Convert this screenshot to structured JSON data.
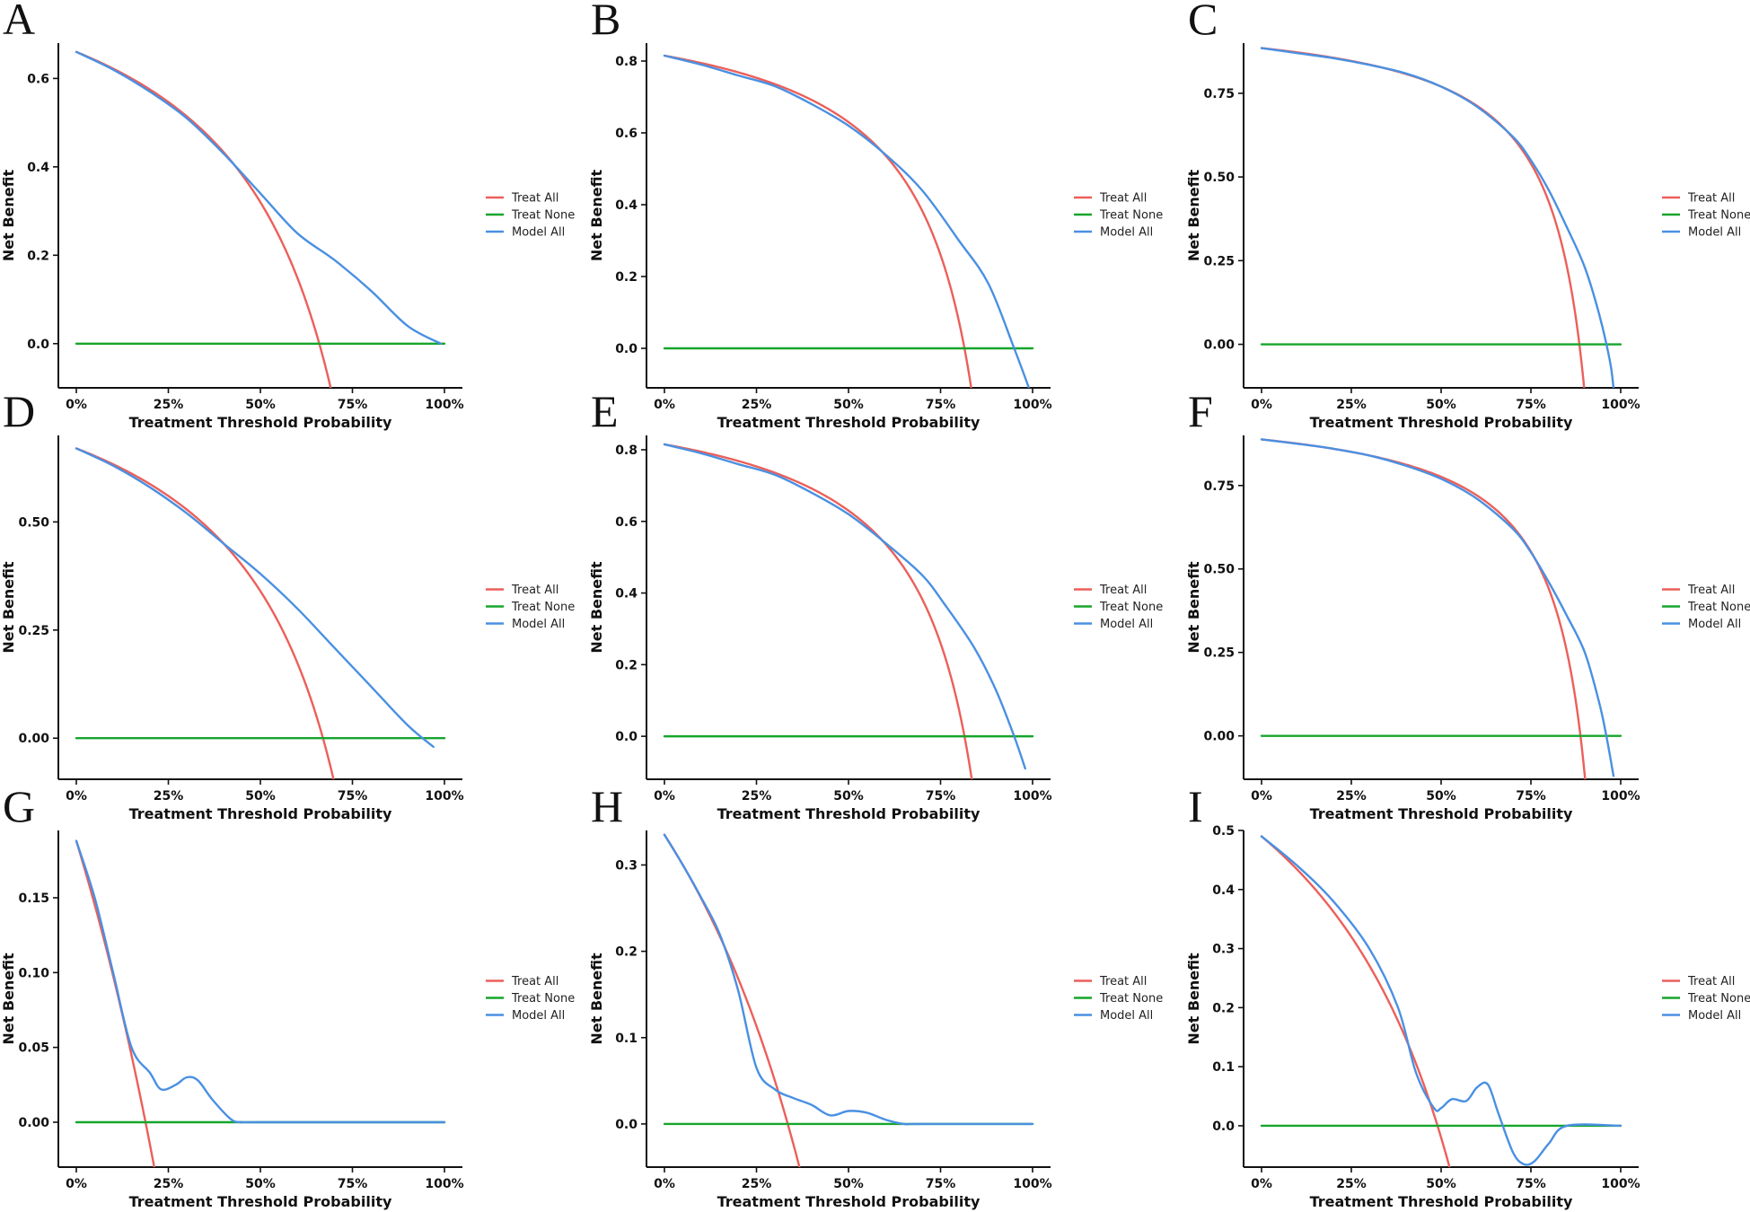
{
  "colors": {
    "treat_all": "#ec5f5a",
    "treat_none": "#17a52c",
    "model_all": "#4a90e2"
  },
  "chart_data": [
    {
      "type": "line",
      "panel": "A",
      "xlabel": "Treatment Threshold Probability",
      "ylabel": "Net Benefit",
      "xlim": [
        0,
        1
      ],
      "ylim": [
        -0.1,
        0.68
      ],
      "xticks": [
        0,
        0.25,
        0.5,
        0.75,
        1.0
      ],
      "xtick_labels": [
        "0%",
        "25%",
        "50%",
        "75%",
        "100%"
      ],
      "yticks": [
        0.0,
        0.2,
        0.4,
        0.6
      ],
      "ytick_labels": [
        "0.0",
        "0.2",
        "0.4",
        "0.6"
      ],
      "legend": [
        "Treat All",
        "Treat None",
        "Model All"
      ],
      "legend_position": "right",
      "prevalence": 0.66,
      "series": [
        {
          "name": "Treat None",
          "x": [
            0,
            1
          ],
          "y": [
            0,
            0
          ]
        },
        {
          "name": "Model All",
          "x": [
            0,
            0.1,
            0.2,
            0.3,
            0.4,
            0.5,
            0.6,
            0.7,
            0.8,
            0.9,
            0.99
          ],
          "y": [
            0.66,
            0.62,
            0.57,
            0.51,
            0.43,
            0.34,
            0.25,
            0.19,
            0.12,
            0.04,
            0.0
          ]
        }
      ]
    },
    {
      "type": "line",
      "panel": "B",
      "xlabel": "Treatment Threshold Probability",
      "ylabel": "Net Benefit",
      "xlim": [
        0,
        1
      ],
      "ylim": [
        -0.11,
        0.85
      ],
      "xticks": [
        0,
        0.25,
        0.5,
        0.75,
        1.0
      ],
      "xtick_labels": [
        "0%",
        "25%",
        "50%",
        "75%",
        "100%"
      ],
      "yticks": [
        0.0,
        0.2,
        0.4,
        0.6,
        0.8
      ],
      "ytick_labels": [
        "0.0",
        "0.2",
        "0.4",
        "0.6",
        "0.8"
      ],
      "legend": [
        "Treat All",
        "Treat None",
        "Model All"
      ],
      "legend_position": "right",
      "prevalence": 0.815,
      "series": [
        {
          "name": "Treat None",
          "x": [
            0,
            1
          ],
          "y": [
            0,
            0
          ]
        },
        {
          "name": "Model All",
          "x": [
            0,
            0.1,
            0.2,
            0.3,
            0.4,
            0.5,
            0.6,
            0.7,
            0.8,
            0.88,
            0.95,
            0.99
          ],
          "y": [
            0.815,
            0.79,
            0.76,
            0.73,
            0.68,
            0.62,
            0.54,
            0.44,
            0.3,
            0.18,
            0.0,
            -0.11
          ]
        }
      ]
    },
    {
      "type": "line",
      "panel": "C",
      "xlabel": "Treatment Threshold Probability",
      "ylabel": "Net Benefit",
      "xlim": [
        0,
        1
      ],
      "ylim": [
        -0.13,
        0.9
      ],
      "xticks": [
        0,
        0.25,
        0.5,
        0.75,
        1.0
      ],
      "xtick_labels": [
        "0%",
        "25%",
        "50%",
        "75%",
        "100%"
      ],
      "yticks": [
        0.0,
        0.25,
        0.5,
        0.75
      ],
      "ytick_labels": [
        "0.00",
        "0.25",
        "0.50",
        "0.75"
      ],
      "legend": [
        "Treat All",
        "Treat None",
        "Model All"
      ],
      "legend_position": "right",
      "prevalence": 0.885,
      "series": [
        {
          "name": "Treat None",
          "x": [
            0,
            1
          ],
          "y": [
            0,
            0
          ]
        },
        {
          "name": "Model All",
          "x": [
            0,
            0.1,
            0.2,
            0.3,
            0.4,
            0.5,
            0.6,
            0.7,
            0.75,
            0.8,
            0.85,
            0.9,
            0.94,
            0.97,
            0.98
          ],
          "y": [
            0.885,
            0.87,
            0.855,
            0.835,
            0.81,
            0.77,
            0.71,
            0.62,
            0.55,
            0.46,
            0.35,
            0.23,
            0.09,
            -0.05,
            -0.13
          ]
        }
      ]
    },
    {
      "type": "line",
      "panel": "D",
      "xlabel": "Treatment Threshold Probability",
      "ylabel": "Net Benefit",
      "xlim": [
        0,
        1
      ],
      "ylim": [
        -0.095,
        0.7
      ],
      "xticks": [
        0,
        0.25,
        0.5,
        0.75,
        1.0
      ],
      "xtick_labels": [
        "0%",
        "25%",
        "50%",
        "75%",
        "100%"
      ],
      "yticks": [
        0.0,
        0.25,
        0.5
      ],
      "ytick_labels": [
        "0.00",
        "0.25",
        "0.50"
      ],
      "legend": [
        "Treat All",
        "Treat None",
        "Model All"
      ],
      "legend_position": "right",
      "prevalence": 0.67,
      "series": [
        {
          "name": "Treat None",
          "x": [
            0,
            1
          ],
          "y": [
            0,
            0
          ]
        },
        {
          "name": "Model All",
          "x": [
            0,
            0.1,
            0.2,
            0.3,
            0.4,
            0.5,
            0.6,
            0.7,
            0.8,
            0.9,
            0.97
          ],
          "y": [
            0.67,
            0.63,
            0.58,
            0.52,
            0.45,
            0.38,
            0.3,
            0.21,
            0.12,
            0.03,
            -0.02
          ]
        }
      ]
    },
    {
      "type": "line",
      "panel": "E",
      "xlabel": "Treatment Threshold Probability",
      "ylabel": "Net Benefit",
      "xlim": [
        0,
        1
      ],
      "ylim": [
        -0.12,
        0.84
      ],
      "xticks": [
        0,
        0.25,
        0.5,
        0.75,
        1.0
      ],
      "xtick_labels": [
        "0%",
        "25%",
        "50%",
        "75%",
        "100%"
      ],
      "yticks": [
        0.0,
        0.2,
        0.4,
        0.6,
        0.8
      ],
      "ytick_labels": [
        "0.0",
        "0.2",
        "0.4",
        "0.6",
        "0.8"
      ],
      "legend": [
        "Treat All",
        "Treat None",
        "Model All"
      ],
      "legend_position": "right",
      "prevalence": 0.815,
      "series": [
        {
          "name": "Treat None",
          "x": [
            0,
            1
          ],
          "y": [
            0,
            0
          ]
        },
        {
          "name": "Model All",
          "x": [
            0,
            0.1,
            0.2,
            0.3,
            0.4,
            0.5,
            0.6,
            0.7,
            0.76,
            0.84,
            0.9,
            0.95,
            0.98
          ],
          "y": [
            0.815,
            0.79,
            0.76,
            0.73,
            0.68,
            0.62,
            0.54,
            0.45,
            0.37,
            0.25,
            0.13,
            0.0,
            -0.09
          ]
        }
      ]
    },
    {
      "type": "line",
      "panel": "F",
      "xlabel": "Treatment Threshold Probability",
      "ylabel": "Net Benefit",
      "xlim": [
        0,
        1
      ],
      "ylim": [
        -0.13,
        0.9
      ],
      "xticks": [
        0,
        0.25,
        0.5,
        0.75,
        1.0
      ],
      "xtick_labels": [
        "0%",
        "25%",
        "50%",
        "75%",
        "100%"
      ],
      "yticks": [
        0.0,
        0.25,
        0.5,
        0.75
      ],
      "ytick_labels": [
        "0.00",
        "0.25",
        "0.50",
        "0.75"
      ],
      "legend": [
        "Treat All",
        "Treat None",
        "Model All"
      ],
      "legend_position": "right",
      "prevalence": 0.888,
      "series": [
        {
          "name": "Treat None",
          "x": [
            0,
            1
          ],
          "y": [
            0,
            0
          ]
        },
        {
          "name": "Model All",
          "x": [
            0,
            0.1,
            0.2,
            0.3,
            0.4,
            0.5,
            0.6,
            0.7,
            0.75,
            0.8,
            0.85,
            0.9,
            0.94,
            0.96,
            0.98
          ],
          "y": [
            0.888,
            0.875,
            0.86,
            0.84,
            0.81,
            0.77,
            0.71,
            0.62,
            0.55,
            0.46,
            0.36,
            0.25,
            0.1,
            0.0,
            -0.12
          ]
        }
      ]
    },
    {
      "type": "line",
      "panel": "G",
      "xlabel": "Treatment Threshold Probability",
      "ylabel": "Net Benefit",
      "xlim": [
        0,
        1
      ],
      "ylim": [
        -0.03,
        0.195
      ],
      "xticks": [
        0,
        0.25,
        0.5,
        0.75,
        1.0
      ],
      "xtick_labels": [
        "0%",
        "25%",
        "50%",
        "75%",
        "100%"
      ],
      "yticks": [
        0.0,
        0.05,
        0.1,
        0.15
      ],
      "ytick_labels": [
        "0.00",
        "0.05",
        "0.10",
        "0.15"
      ],
      "legend": [
        "Treat All",
        "Treat None",
        "Model All"
      ],
      "legend_position": "right",
      "prevalence": 0.188,
      "series": [
        {
          "name": "Treat None",
          "x": [
            0,
            1
          ],
          "y": [
            0,
            0
          ]
        },
        {
          "name": "Model All",
          "x": [
            0,
            0.05,
            0.1,
            0.15,
            0.2,
            0.23,
            0.27,
            0.3,
            0.33,
            0.37,
            0.42,
            0.45,
            0.5,
            1.0
          ],
          "y": [
            0.188,
            0.15,
            0.1,
            0.05,
            0.033,
            0.022,
            0.025,
            0.03,
            0.028,
            0.015,
            0.002,
            0.0,
            0.0,
            0.0
          ]
        }
      ]
    },
    {
      "type": "line",
      "panel": "H",
      "xlabel": "Treatment Threshold Probability",
      "ylabel": "Net Benefit",
      "xlim": [
        0,
        1
      ],
      "ylim": [
        -0.05,
        0.34
      ],
      "xticks": [
        0,
        0.25,
        0.5,
        0.75,
        1.0
      ],
      "xtick_labels": [
        "0%",
        "25%",
        "50%",
        "75%",
        "100%"
      ],
      "yticks": [
        0.0,
        0.1,
        0.2,
        0.3
      ],
      "ytick_labels": [
        "0.0",
        "0.1",
        "0.2",
        "0.3"
      ],
      "legend": [
        "Treat All",
        "Treat None",
        "Model All"
      ],
      "legend_position": "right",
      "prevalence": 0.335,
      "series": [
        {
          "name": "Treat None",
          "x": [
            0,
            1
          ],
          "y": [
            0,
            0
          ]
        },
        {
          "name": "Model All",
          "x": [
            0,
            0.05,
            0.1,
            0.15,
            0.2,
            0.25,
            0.3,
            0.35,
            0.4,
            0.45,
            0.5,
            0.55,
            0.6,
            0.65,
            0.7,
            1.0
          ],
          "y": [
            0.335,
            0.3,
            0.262,
            0.22,
            0.155,
            0.065,
            0.04,
            0.03,
            0.022,
            0.01,
            0.015,
            0.013,
            0.005,
            0.0,
            0.0,
            0.0
          ]
        }
      ]
    },
    {
      "type": "line",
      "panel": "I",
      "xlabel": "Treatment Threshold Probability",
      "ylabel": "Net Benefit",
      "xlim": [
        0,
        1
      ],
      "ylim": [
        -0.07,
        0.5
      ],
      "xticks": [
        0,
        0.25,
        0.5,
        0.75,
        1.0
      ],
      "xtick_labels": [
        "0%",
        "25%",
        "50%",
        "75%",
        "100%"
      ],
      "yticks": [
        0.0,
        0.1,
        0.2,
        0.3,
        0.4,
        0.5
      ],
      "ytick_labels": [
        "0.0",
        "0.1",
        "0.2",
        "0.3",
        "0.4",
        "0.5"
      ],
      "legend": [
        "Treat All",
        "Treat None",
        "Model All"
      ],
      "legend_position": "right",
      "prevalence": 0.49,
      "series": [
        {
          "name": "Treat None",
          "x": [
            0,
            1
          ],
          "y": [
            0,
            0
          ]
        },
        {
          "name": "Model All",
          "x": [
            0,
            0.1,
            0.2,
            0.3,
            0.38,
            0.43,
            0.48,
            0.5,
            0.53,
            0.57,
            0.6,
            0.63,
            0.66,
            0.7,
            0.73,
            0.76,
            0.8,
            0.85,
            1.0
          ],
          "y": [
            0.49,
            0.44,
            0.38,
            0.3,
            0.2,
            0.09,
            0.03,
            0.03,
            0.045,
            0.042,
            0.065,
            0.07,
            0.02,
            -0.045,
            -0.065,
            -0.06,
            -0.03,
            0.0,
            0.0
          ]
        }
      ]
    }
  ]
}
